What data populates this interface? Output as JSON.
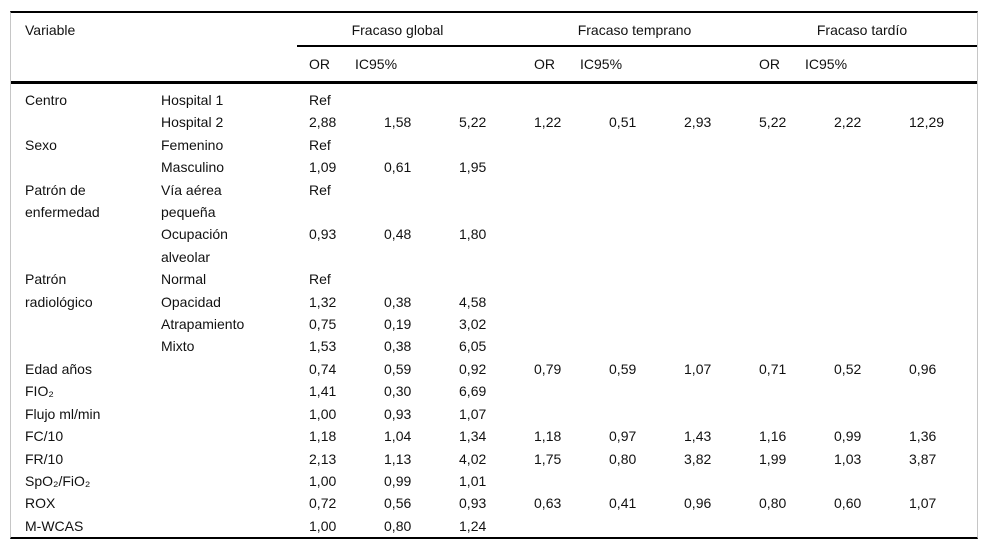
{
  "table": {
    "col_variable": "Variable",
    "groups": [
      "Fracaso global",
      "Fracaso temprano",
      "Fracaso tardío"
    ],
    "subheaders": {
      "or": "OR",
      "ic": "IC95%"
    },
    "rows": [
      {
        "variable": "Centro",
        "span": 2,
        "category": "Hospital 1",
        "values": [
          "Ref",
          "",
          "",
          "",
          "",
          "",
          "",
          "",
          ""
        ]
      },
      {
        "category": "Hospital 2",
        "values": [
          "2,88",
          "1,58",
          "5,22",
          "1,22",
          "0,51",
          "2,93",
          "5,22",
          "2,22",
          "12,29"
        ]
      },
      {
        "variable": "Sexo",
        "span": 2,
        "category": "Femenino",
        "values": [
          "Ref",
          "",
          "",
          "",
          "",
          "",
          "",
          "",
          ""
        ]
      },
      {
        "category": "Masculino",
        "values": [
          "1,09",
          "0,61",
          "1,95",
          "",
          "",
          "",
          "",
          "",
          ""
        ]
      },
      {
        "variable": "Patrón de enfermedad",
        "span": 2,
        "category": "Vía aérea pequeña",
        "values": [
          "Ref",
          "",
          "",
          "",
          "",
          "",
          "",
          "",
          ""
        ]
      },
      {
        "category": "Ocupación alveolar",
        "values": [
          "0,93",
          "0,48",
          "1,80",
          "",
          "",
          "",
          "",
          "",
          ""
        ]
      },
      {
        "variable": "Patrón radiológico",
        "span": 4,
        "category": "Normal",
        "values": [
          "Ref",
          "",
          "",
          "",
          "",
          "",
          "",
          "",
          ""
        ]
      },
      {
        "category": "Opacidad",
        "values": [
          "1,32",
          "0,38",
          "4,58",
          "",
          "",
          "",
          "",
          "",
          ""
        ]
      },
      {
        "category": "Atrapamiento",
        "values": [
          "0,75",
          "0,19",
          "3,02",
          "",
          "",
          "",
          "",
          "",
          ""
        ]
      },
      {
        "category": "Mixto",
        "values": [
          "1,53",
          "0,38",
          "6,05",
          "",
          "",
          "",
          "",
          "",
          ""
        ]
      },
      {
        "variable": "Edad años",
        "category": "",
        "values": [
          "0,74",
          "0,59",
          "0,92",
          "0,79",
          "0,59",
          "1,07",
          "0,71",
          "0,52",
          "0,96"
        ]
      },
      {
        "variable": "FIO₂",
        "category": "",
        "values": [
          "1,41",
          "0,30",
          "6,69",
          "",
          "",
          "",
          "",
          "",
          ""
        ]
      },
      {
        "variable": "Flujo ml/min",
        "category": "",
        "values": [
          "1,00",
          "0,93",
          "1,07",
          "",
          "",
          "",
          "",
          "",
          ""
        ]
      },
      {
        "variable": "FC/10",
        "category": "",
        "values": [
          "1,18",
          "1,04",
          "1,34",
          "1,18",
          "0,97",
          "1,43",
          "1,16",
          "0,99",
          "1,36"
        ]
      },
      {
        "variable": "FR/10",
        "category": "",
        "values": [
          "2,13",
          "1,13",
          "4,02",
          "1,75",
          "0,80",
          "3,82",
          "1,99",
          "1,03",
          "3,87"
        ]
      },
      {
        "variable": "SpO₂/FiO₂",
        "category": "",
        "values": [
          "1,00",
          "0,99",
          "1,01",
          "",
          "",
          "",
          "",
          "",
          ""
        ]
      },
      {
        "variable": "ROX",
        "category": "",
        "values": [
          "0,72",
          "0,56",
          "0,93",
          "0,63",
          "0,41",
          "0,96",
          "0,80",
          "0,60",
          "1,07"
        ]
      },
      {
        "variable": "M-WCAS",
        "category": "",
        "values": [
          "1,00",
          "0,80",
          "1,24",
          "",
          "",
          "",
          "",
          "",
          ""
        ]
      }
    ]
  }
}
